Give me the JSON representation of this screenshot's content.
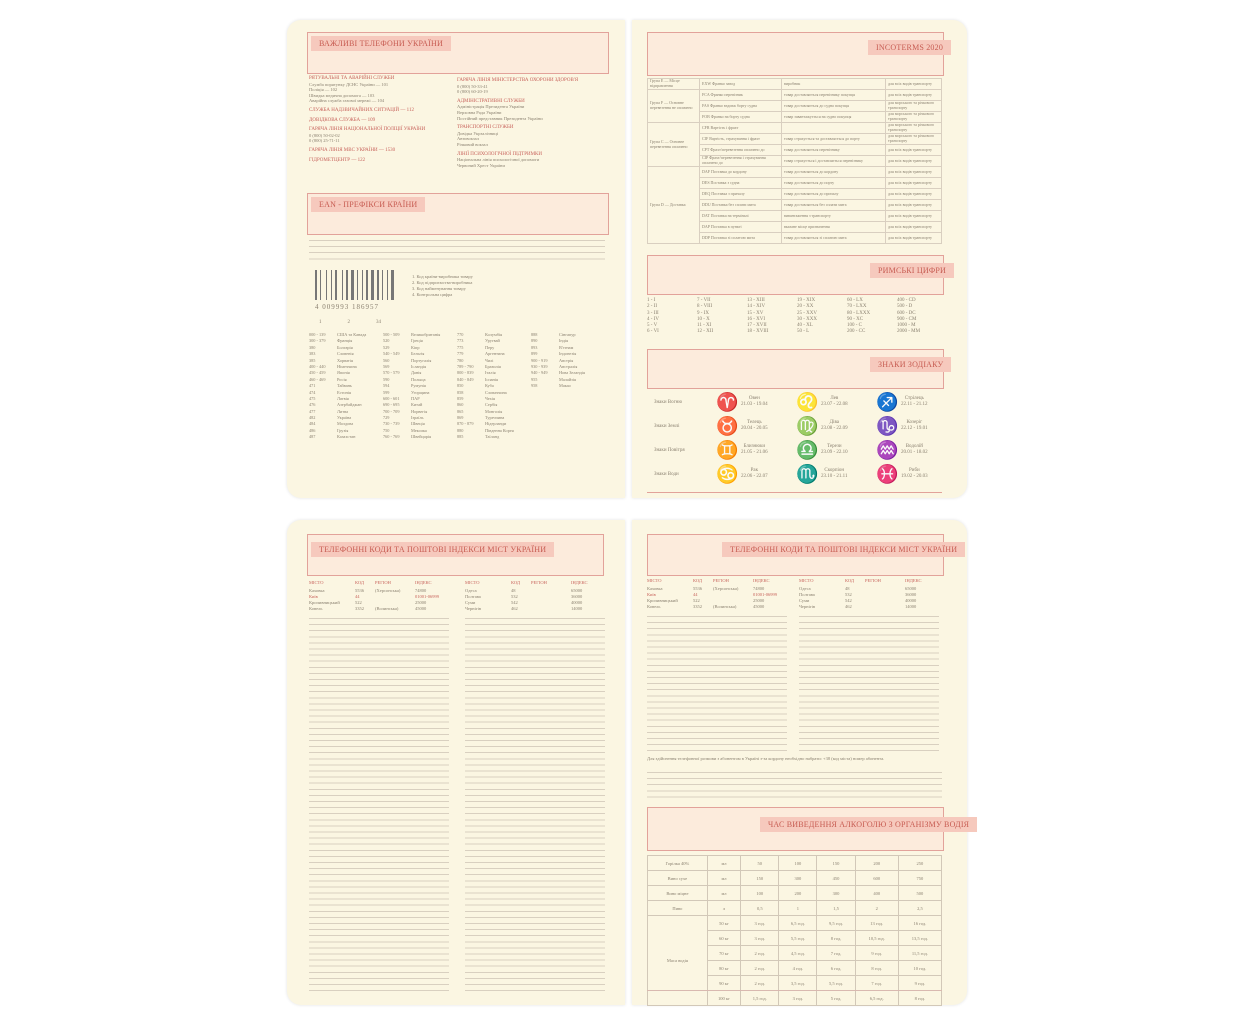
{
  "important_phones": {
    "title": "ВАЖЛИВІ ТЕЛЕФОНИ УКРАЇНИ",
    "left": [
      {
        "title": "РЯТУВАЛЬНІ ТА АВАРІЙНІ СЛУЖБИ",
        "lines": [
          "Служба порятунку ДСНС України — 101",
          "Поліція — 102",
          "Швидка медична допомога — 103",
          "Аварійна служба газової мережі — 104"
        ]
      },
      {
        "title": "СЛУЖБА НАДЗВИЧАЙНИХ СИТУАЦІЙ — 112",
        "lines": []
      },
      {
        "title": "ДОВІДКОВА СЛУЖБА — 109",
        "lines": []
      },
      {
        "title": "ГАРЯЧА ЛІНІЯ НАЦІОНАЛЬНОЇ ПОЛІЦІЇ УКРАЇНИ",
        "lines": [
          "0 (800) 50-02-02",
          "0 (800) 25-71-11"
        ]
      },
      {
        "title": "ГАРЯЧА ЛІНІЯ МВС УКРАЇНИ — 1530",
        "lines": []
      },
      {
        "title": "ГІДРОМЕТЦЕНТР — 122",
        "lines": []
      }
    ],
    "right": [
      {
        "title": "ГАРЯЧА ЛІНІЯ МІНІСТЕРСТВА ОХОРОНИ ЗДОРОВ'Я",
        "lines": [
          "0 (800) 50-33-41",
          "0 (800) 60-20-19"
        ]
      },
      {
        "title": "АДМІНІСТРАТИВНІ СЛУЖБИ",
        "lines": [
          "Адміністрація Президента України",
          "Верховна Рада України",
          "Постійний представник Президента України"
        ]
      },
      {
        "title": "ТРАНСПОРТНІ СЛУЖБИ",
        "lines": [
          "Довідка Укрзалізниці",
          "Автовокзал",
          "Річковий вокзал"
        ]
      },
      {
        "title": "ЛІНІЇ ПСИХОЛОГІЧНОЇ ПІДТРИМКИ",
        "lines": [
          "Національна лінія психологічної допомоги",
          "Червоний Хрест України"
        ]
      }
    ]
  },
  "ean": {
    "title": "EAN - ПРЕФІКСИ КРАЇНИ",
    "barcode_digits": "4 009993 186957",
    "barcode_marks": [
      "1",
      "2",
      "34"
    ],
    "legend": [
      "1. Код країни-виробника товару",
      "2. Код підприємства-виробника",
      "3. Код найменування товару",
      "4. Контрольна цифра"
    ],
    "prefixes": [
      [
        "000 - 139",
        "США та Канада"
      ],
      [
        "300 - 379",
        "Франція"
      ],
      [
        "380",
        "Болгарія"
      ],
      [
        "383",
        "Словенія"
      ],
      [
        "385",
        "Хорватія"
      ],
      [
        "400 - 440",
        "Німеччина"
      ],
      [
        "450 - 459",
        "Японія"
      ],
      [
        "460 - 469",
        "Росія"
      ],
      [
        "471",
        "Тайвань"
      ],
      [
        "474",
        "Естонія"
      ],
      [
        "475",
        "Латвія"
      ],
      [
        "476",
        "Азербайджан"
      ],
      [
        "477",
        "Литва"
      ],
      [
        "482",
        "Україна"
      ],
      [
        "484",
        "Молдова"
      ],
      [
        "486",
        "Грузія"
      ],
      [
        "487",
        "Казахстан"
      ],
      [
        "500 - 509",
        "Великобританія"
      ],
      [
        "520",
        "Греція"
      ],
      [
        "529",
        "Кіпр"
      ],
      [
        "540 - 549",
        "Бельгія"
      ],
      [
        "560",
        "Португалія"
      ],
      [
        "569",
        "Ісландія"
      ],
      [
        "570 - 579",
        "Данія"
      ],
      [
        "590",
        "Польща"
      ],
      [
        "594",
        "Румунія"
      ],
      [
        "599",
        "Угорщина"
      ],
      [
        "600 - 601",
        "ПАР"
      ],
      [
        "690 - 695",
        "Китай"
      ],
      [
        "700 - 709",
        "Норвегія"
      ],
      [
        "729",
        "Ізраїль"
      ],
      [
        "730 - 739",
        "Швеція"
      ],
      [
        "750",
        "Мексика"
      ],
      [
        "760 - 769",
        "Швейцарія"
      ],
      [
        "770",
        "Колумбія"
      ],
      [
        "773",
        "Уругвай"
      ],
      [
        "775",
        "Перу"
      ],
      [
        "779",
        "Аргентина"
      ],
      [
        "780",
        "Чилі"
      ],
      [
        "789 - 790",
        "Бразилія"
      ],
      [
        "800 - 839",
        "Італія"
      ],
      [
        "840 - 849",
        "Іспанія"
      ],
      [
        "850",
        "Куба"
      ],
      [
        "858",
        "Словаччина"
      ],
      [
        "859",
        "Чехія"
      ],
      [
        "860",
        "Сербія"
      ],
      [
        "865",
        "Монголія"
      ],
      [
        "869",
        "Туреччина"
      ],
      [
        "870 - 879",
        "Нідерланди"
      ],
      [
        "880",
        "Південна Корея"
      ],
      [
        "885",
        "Таїланд"
      ],
      [
        "888",
        "Сінгапур"
      ],
      [
        "890",
        "Індія"
      ],
      [
        "893",
        "В'єтнам"
      ],
      [
        "899",
        "Індонезія"
      ],
      [
        "900 - 919",
        "Австрія"
      ],
      [
        "930 - 939",
        "Австралія"
      ],
      [
        "940 - 949",
        "Нова Зеландія"
      ],
      [
        "955",
        "Малайзія"
      ],
      [
        "958",
        "Макао"
      ]
    ]
  },
  "incoterms": {
    "title": "INCOTERMS 2020",
    "rows": [
      {
        "group": "Група E — Місце відправлення",
        "term": "EXW Франко завод",
        "desc": "виробник",
        "transport": "для всіх видів транспорту"
      },
      {
        "group": "Група F — Основне перевезення не оплачено",
        "term": "FCA Франко перевізник",
        "desc": "товар доставляється перевізнику покупця",
        "transport": "для всіх видів транспорту"
      },
      {
        "group": "",
        "term": "FAS Франко вздовж борту судна",
        "desc": "товар доставляється до судна покупця",
        "transport": "для морського та річкового транспорту"
      },
      {
        "group": "",
        "term": "FOB Франко на борту судна",
        "desc": "товар завантажується на судно покупця",
        "transport": "для морського та річкового транспорту"
      },
      {
        "group": "Група C — Основне перевезення оплачено",
        "term": "CFR Вартість і фрахт",
        "desc": "",
        "transport": "для морського та річкового транспорту"
      },
      {
        "group": "",
        "term": "CIF Вартість, страхування і фрахт",
        "desc": "товар страхується та доставляється до порту",
        "transport": "для морського та річкового транспорту"
      },
      {
        "group": "",
        "term": "CPT Фрахт/перевезення оплачено до",
        "desc": "товар доставляється перевізнику",
        "transport": "для всіх видів транспорту"
      },
      {
        "group": "",
        "term": "CIP Фрахт/перевезення і страхування оплачено до",
        "desc": "товар страхується і доставляється перевізнику",
        "transport": "для всіх видів транспорту"
      },
      {
        "group": "Група D — Доставка",
        "term": "DAF Поставка до кордону",
        "desc": "товар доставляється до кордону",
        "transport": "для всіх видів транспорту"
      },
      {
        "group": "",
        "term": "DES Поставка з судна",
        "desc": "товар доставляється до порту",
        "transport": "для всіх видів транспорту"
      },
      {
        "group": "",
        "term": "DEQ Поставка з причалу",
        "desc": "товар доставляється до причалу",
        "transport": "для всіх видів транспорту"
      },
      {
        "group": "",
        "term": "DDU Поставка без сплати мита",
        "desc": "товар доставляється без сплати мита",
        "transport": "для всіх видів транспорту"
      },
      {
        "group": "",
        "term": "DAT Поставка на терміналі",
        "desc": "вивантаження з транспорту",
        "transport": "для всіх видів транспорту"
      },
      {
        "group": "",
        "term": "DAP Поставка в пункті",
        "desc": "вказане місце призначення",
        "transport": "для всіх видів транспорту"
      },
      {
        "group": "",
        "term": "DDP Поставка зі сплатою мита",
        "desc": "товар доставляється зі сплатою мита",
        "transport": "для всіх видів транспорту"
      }
    ]
  },
  "roman": {
    "title": "РИМСЬКІ ЦИФРИ",
    "items": [
      "1 - I",
      "7 - VII",
      "13 - XIII",
      "19 - XIX",
      "60 - LX",
      "400 - CD",
      "2 - II",
      "8 - VIII",
      "14 - XIV",
      "20 - XX",
      "70 - LXX",
      "500 - D",
      "3 - III",
      "9 - IX",
      "15 - XV",
      "25 - XXV",
      "80 - LXXX",
      "600 - DC",
      "4 - IV",
      "10 - X",
      "16 - XVI",
      "30 - XXX",
      "90 - XC",
      "900 - CM",
      "5 - V",
      "11 - XI",
      "17 - XVII",
      "40 - XL",
      "100 - C",
      "1000 - M",
      "6 - VI",
      "12 - XII",
      "18 - XVIII",
      "50 - L",
      "200 - CC",
      "2000 - MM"
    ]
  },
  "zodiac": {
    "title": "ЗНАКИ ЗОДІАКУ",
    "rows": [
      {
        "element": "Знаки Вогню",
        "signs": [
          {
            "glyph": "♈",
            "name": "Овен",
            "dates": "21.03 - 19.04"
          },
          {
            "glyph": "♌",
            "name": "Лев",
            "dates": "23.07 - 22.08"
          },
          {
            "glyph": "♐",
            "name": "Стрілець",
            "dates": "22.11 - 21.12"
          }
        ]
      },
      {
        "element": "Знаки Землі",
        "signs": [
          {
            "glyph": "♉",
            "name": "Телець",
            "dates": "20.04 - 20.05"
          },
          {
            "glyph": "♍",
            "name": "Діва",
            "dates": "23.08 - 22.09"
          },
          {
            "glyph": "♑",
            "name": "Козеріг",
            "dates": "22.12 - 19.01"
          }
        ]
      },
      {
        "element": "Знаки Повітря",
        "signs": [
          {
            "glyph": "♊",
            "name": "Близнюки",
            "dates": "21.05 - 21.06"
          },
          {
            "glyph": "♎",
            "name": "Терези",
            "dates": "23.09 - 22.10"
          },
          {
            "glyph": "♒",
            "name": "Водолій",
            "dates": "20.01 - 18.02"
          }
        ]
      },
      {
        "element": "Знаки Води",
        "signs": [
          {
            "glyph": "♋",
            "name": "Рак",
            "dates": "22.06 - 22.07"
          },
          {
            "glyph": "♏",
            "name": "Скорпіон",
            "dates": "23.10 - 21.11"
          },
          {
            "glyph": "♓",
            "name": "Риби",
            "dates": "19.02 - 20.03"
          }
        ]
      }
    ]
  },
  "cities": {
    "title": "ТЕЛЕФОННІ КОДИ ТА ПОШТОВІ ІНДЕКСИ МІСТ УКРАЇНИ",
    "headers": [
      "МІСТО",
      "КОД",
      "РЕГІОН",
      "ІНДЕКС"
    ],
    "left_sample": [
      [
        "Каховка",
        "5536",
        "(Херсонська)",
        "74800"
      ],
      [
        "Київ",
        "44",
        "",
        "01001-06999"
      ],
      [
        "Кропивницький",
        "522",
        "",
        "25000"
      ],
      [
        "Ковель",
        "3352",
        "(Волинська)",
        "45000"
      ]
    ],
    "right_sample": [
      [
        "Одеса",
        "48",
        "",
        "65000"
      ],
      [
        "Полтава",
        "532",
        "",
        "36000"
      ],
      [
        "Суми",
        "542",
        "",
        "40000"
      ],
      [
        "Чернігів",
        "462",
        "",
        "14000"
      ]
    ],
    "note": "Для здійснення телефонної розмови з абонентом в Україні з-за кордону необхідно набрати: +38 (код міста) номер абонента."
  },
  "alcohol": {
    "title": "ЧАС ВИВЕДЕННЯ АЛКОГОЛЮ З ОРГАНІЗМУ ВОДІЯ",
    "drinks": [
      {
        "name": "Горілка 40%",
        "unit": "мл",
        "values": [
          "50",
          "100",
          "150",
          "200",
          "250"
        ]
      },
      {
        "name": "Вино сухе",
        "unit": "мл",
        "values": [
          "150",
          "300",
          "450",
          "600",
          "750"
        ]
      },
      {
        "name": "Вино міцне",
        "unit": "мл",
        "values": [
          "100",
          "200",
          "300",
          "400",
          "500"
        ]
      },
      {
        "name": "Пиво",
        "unit": "л",
        "values": [
          "0,5",
          "1",
          "1,5",
          "2",
          "2,5"
        ]
      }
    ],
    "weight_label": "Маса водія",
    "weights": [
      {
        "w": "50 кг",
        "values": [
          "3 год.",
          "6,5 год.",
          "9,5 год.",
          "13 год.",
          "16 год."
        ]
      },
      {
        "w": "60 кг",
        "values": [
          "3 год.",
          "5,5 год.",
          "8 год.",
          "10,5 год.",
          "13,5 год."
        ]
      },
      {
        "w": "70 кг",
        "values": [
          "2 год.",
          "4,5 год.",
          "7 год.",
          "9 год.",
          "11,5 год."
        ]
      },
      {
        "w": "80 кг",
        "values": [
          "2 год.",
          "4 год.",
          "6 год.",
          "8 год.",
          "10 год."
        ]
      },
      {
        "w": "90 кг",
        "values": [
          "2 год.",
          "3,5 год.",
          "5,5 год.",
          "7 год.",
          "9 год."
        ]
      },
      {
        "w": "100 кг",
        "values": [
          "1,5 год.",
          "3 год.",
          "5 год.",
          "6,5 год.",
          "8 год."
        ]
      }
    ]
  },
  "colors": {
    "page": "#fbf6e2",
    "accent": "#c7615a",
    "header_fill": "#fcebdc"
  }
}
